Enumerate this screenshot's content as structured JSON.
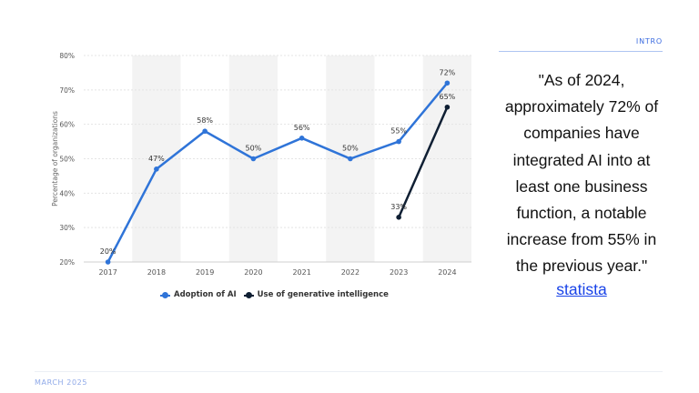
{
  "header": {
    "section_label": "INTRO"
  },
  "footer": {
    "date": "MARCH 2025"
  },
  "quote": {
    "text": "\"As of 2024, approximately 72% of companies have integrated AI into at least one business function, a notable increase from 55% in the previous year.\"",
    "source": "statista"
  },
  "colors": {
    "accent": "#3b6be0",
    "series_ai": "#2f74d8",
    "series_genai": "#0f1f33",
    "link": "#1a44e8"
  },
  "chart_data": {
    "type": "line",
    "ylabel": "Percentage of organizations",
    "x": [
      "2017",
      "2018",
      "2019",
      "2020",
      "2021",
      "2022",
      "2023",
      "2024"
    ],
    "ylim": [
      20,
      80
    ],
    "yticks": [
      "20%",
      "30%",
      "40%",
      "50%",
      "60%",
      "70%",
      "80%"
    ],
    "grid": true,
    "legend_position": "bottom",
    "series": [
      {
        "name": "Adoption of AI",
        "values": [
          20,
          47,
          58,
          50,
          56,
          50,
          55,
          72
        ],
        "labels": [
          "20%",
          "47%",
          "58%",
          "50%",
          "56%",
          "50%",
          "55%",
          "72%"
        ]
      },
      {
        "name": "Use of generative intelligence",
        "values": [
          null,
          null,
          null,
          null,
          null,
          null,
          33,
          65
        ],
        "labels": [
          "",
          "",
          "",
          "",
          "",
          "",
          "33%",
          "65%"
        ]
      }
    ]
  }
}
